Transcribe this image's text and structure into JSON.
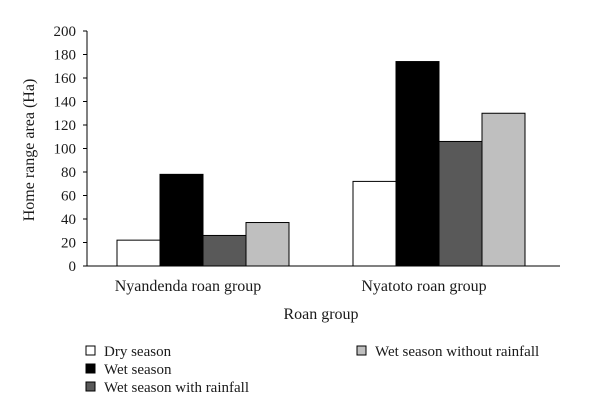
{
  "chart_data": {
    "type": "bar",
    "title": "",
    "xlabel": "Roan group",
    "ylabel": "Home range area (Ha)",
    "ylim": [
      0,
      200
    ],
    "yticks": [
      0,
      20,
      40,
      60,
      80,
      100,
      120,
      140,
      160,
      180,
      200
    ],
    "categories": [
      "Nyandenda roan group",
      "Nyatoto roan group"
    ],
    "series": [
      {
        "name": "Dry season",
        "values": [
          22,
          72
        ],
        "color": "#ffffff"
      },
      {
        "name": "Wet season",
        "values": [
          78,
          174
        ],
        "color": "#000000"
      },
      {
        "name": "Wet season with rainfall",
        "values": [
          26,
          106
        ],
        "color": "#595959"
      },
      {
        "name": "Wet season without rainfall",
        "values": [
          37,
          130
        ],
        "color": "#bfbfbf"
      }
    ],
    "grid": false,
    "legend_position": "bottom"
  }
}
